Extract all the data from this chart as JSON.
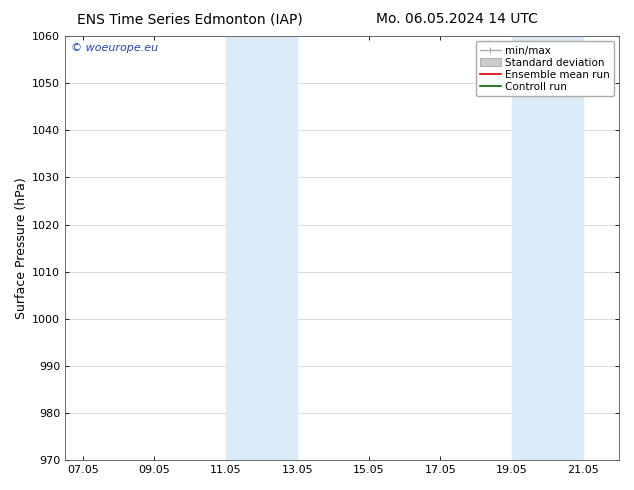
{
  "title_left": "ENS Time Series Edmonton (IAP)",
  "title_right": "Mo. 06.05.2024 14 UTC",
  "ylabel": "Surface Pressure (hPa)",
  "ylim": [
    970,
    1060
  ],
  "yticks": [
    970,
    980,
    990,
    1000,
    1010,
    1020,
    1030,
    1040,
    1050,
    1060
  ],
  "xtick_labels": [
    "07.05",
    "09.05",
    "11.05",
    "13.05",
    "15.05",
    "17.05",
    "19.05",
    "21.05"
  ],
  "xtick_positions": [
    0,
    2,
    4,
    6,
    8,
    10,
    12,
    14
  ],
  "xlim": [
    -0.5,
    15.0
  ],
  "shaded_bands": [
    {
      "x_start": 4.0,
      "x_end": 6.0
    },
    {
      "x_start": 12.0,
      "x_end": 14.0
    }
  ],
  "shaded_color": "#daeaf7",
  "watermark_text": "© woeurope.eu",
  "watermark_color": "#2244bb",
  "bg_color": "#ffffff",
  "grid_color": "#cccccc",
  "title_fontsize": 10,
  "tick_fontsize": 8,
  "ylabel_fontsize": 9,
  "legend_fontsize": 7.5,
  "watermark_fontsize": 8,
  "minmax_color": "#aaaaaa",
  "stddev_color": "#cccccc",
  "mean_color": "#dd0000",
  "ctrl_color": "#006600"
}
